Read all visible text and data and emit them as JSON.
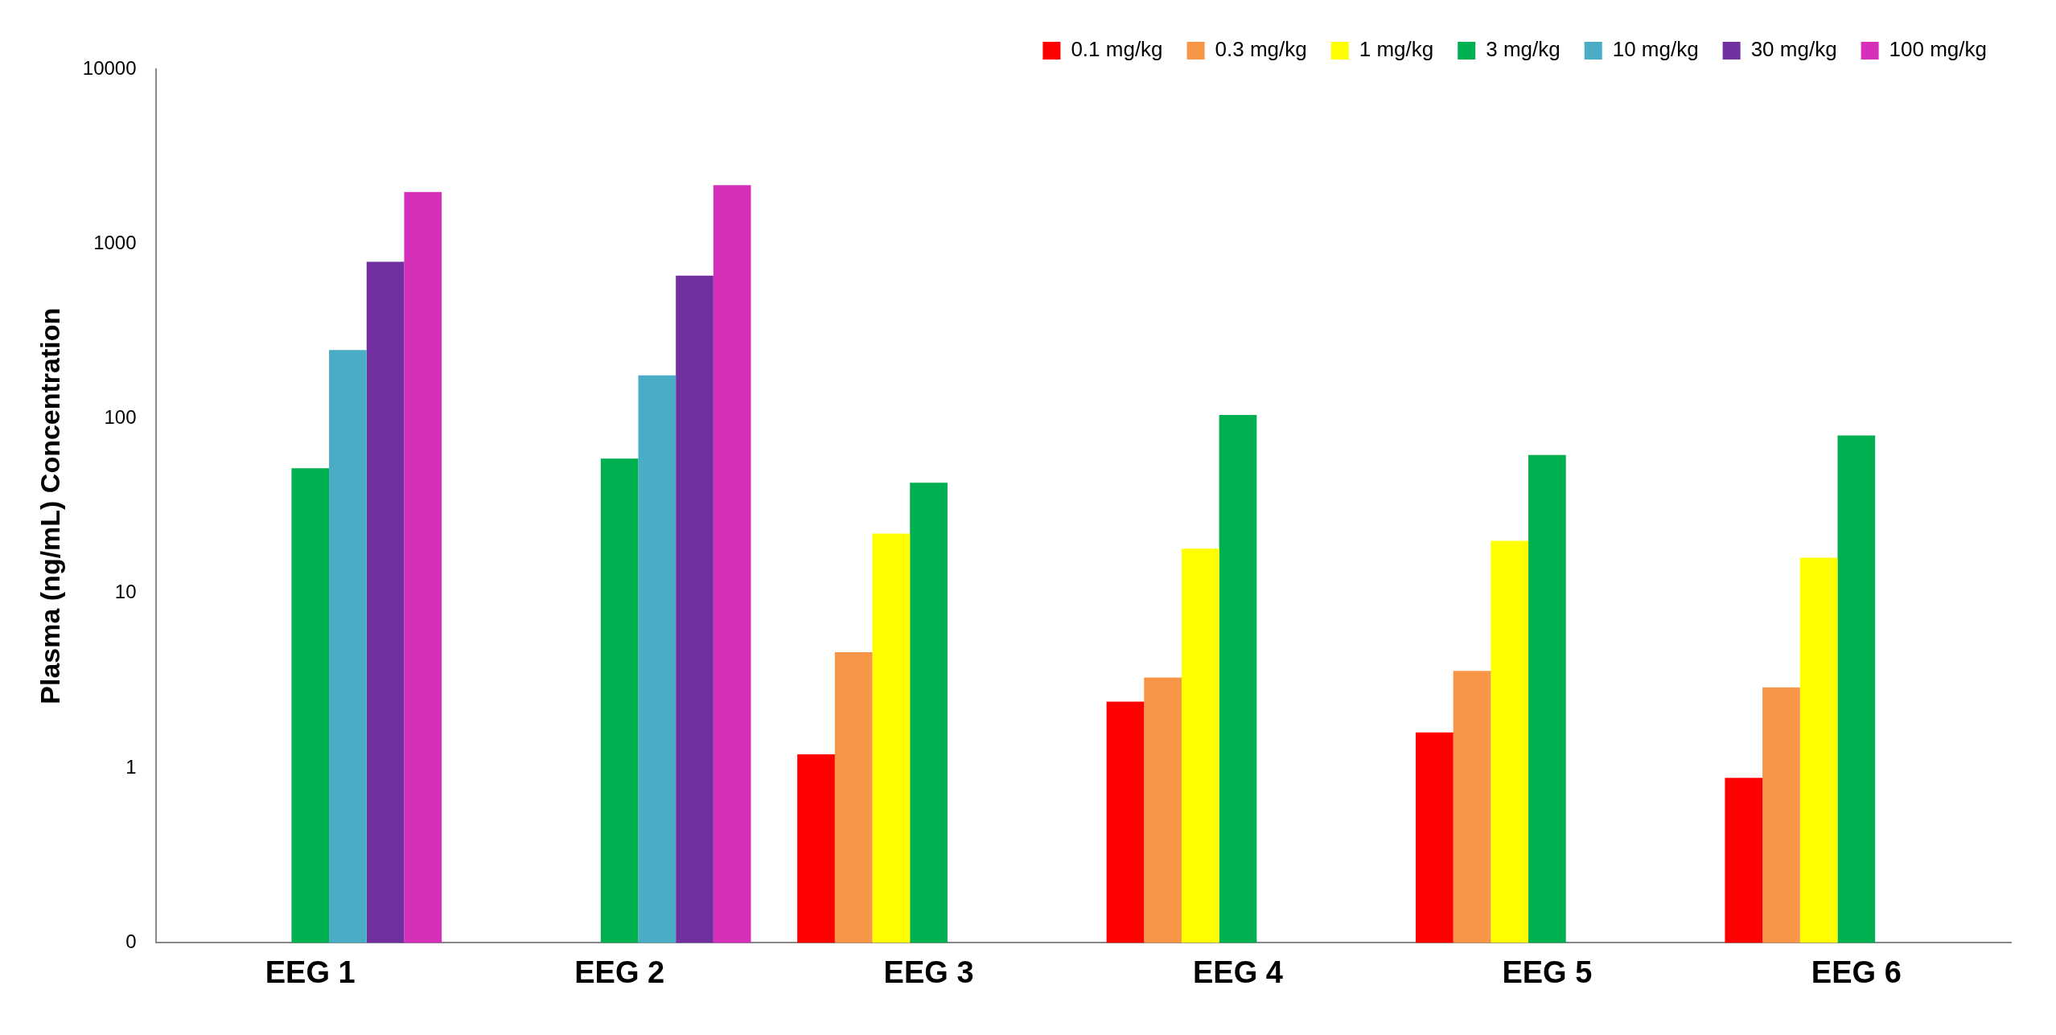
{
  "chart_data": {
    "type": "bar",
    "ylabel": "Plasma (ng/mL) Concentration",
    "categories": [
      "EEG 1",
      "EEG 2",
      "EEG 3",
      "EEG 4",
      "EEG 5",
      "EEG 6"
    ],
    "series": [
      {
        "name": "0.1 mg/kg",
        "color": "#ff0000",
        "values": [
          null,
          null,
          1.2,
          2.4,
          1.6,
          0.88
        ]
      },
      {
        "name": "0.3 mg/kg",
        "color": "#f79646",
        "values": [
          null,
          null,
          4.6,
          3.3,
          3.6,
          2.9
        ]
      },
      {
        "name": "1 mg/kg",
        "color": "#ffff00",
        "values": [
          null,
          null,
          22,
          18,
          20,
          16
        ]
      },
      {
        "name": "3 mg/kg",
        "color": "#00b050",
        "values": [
          52,
          59,
          43,
          105,
          62,
          80
        ]
      },
      {
        "name": "10 mg/kg",
        "color": "#4bacc6",
        "values": [
          247,
          177,
          null,
          null,
          null,
          null
        ]
      },
      {
        "name": "30 mg/kg",
        "color": "#7030a0",
        "values": [
          790,
          658,
          null,
          null,
          null,
          null
        ]
      },
      {
        "name": "100 mg/kg",
        "color": "#d62fb9",
        "values": [
          1980,
          2170,
          null,
          null,
          null,
          null
        ]
      }
    ],
    "log": "y",
    "ylim": [
      0.1,
      10000
    ],
    "yticks": [
      {
        "value": 0.1,
        "label": "0"
      },
      1,
      10,
      100,
      1000,
      10000
    ],
    "grid": false,
    "legend": "top right"
  }
}
